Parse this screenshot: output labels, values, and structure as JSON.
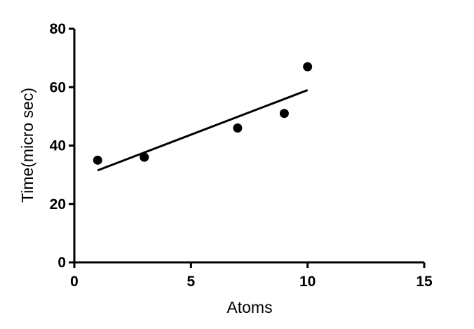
{
  "chart_data": {
    "type": "scatter",
    "title": "",
    "xlabel": "Atoms",
    "ylabel": "Time(micro sec)",
    "xlim": [
      0,
      15
    ],
    "ylim": [
      0,
      80
    ],
    "xticks": [
      0,
      5,
      10,
      15
    ],
    "yticks": [
      0,
      20,
      40,
      60,
      80
    ],
    "grid": false,
    "legend": "none",
    "series": [
      {
        "x": [
          1,
          3,
          7,
          9,
          10
        ],
        "y": [
          35,
          36,
          46,
          51,
          67
        ]
      }
    ],
    "fit_line": {
      "type": "linear",
      "x": [
        1,
        10
      ],
      "y": [
        31.5,
        59
      ]
    },
    "colors": {
      "points": "#000000",
      "line": "#000000",
      "axes": "#000000"
    }
  }
}
